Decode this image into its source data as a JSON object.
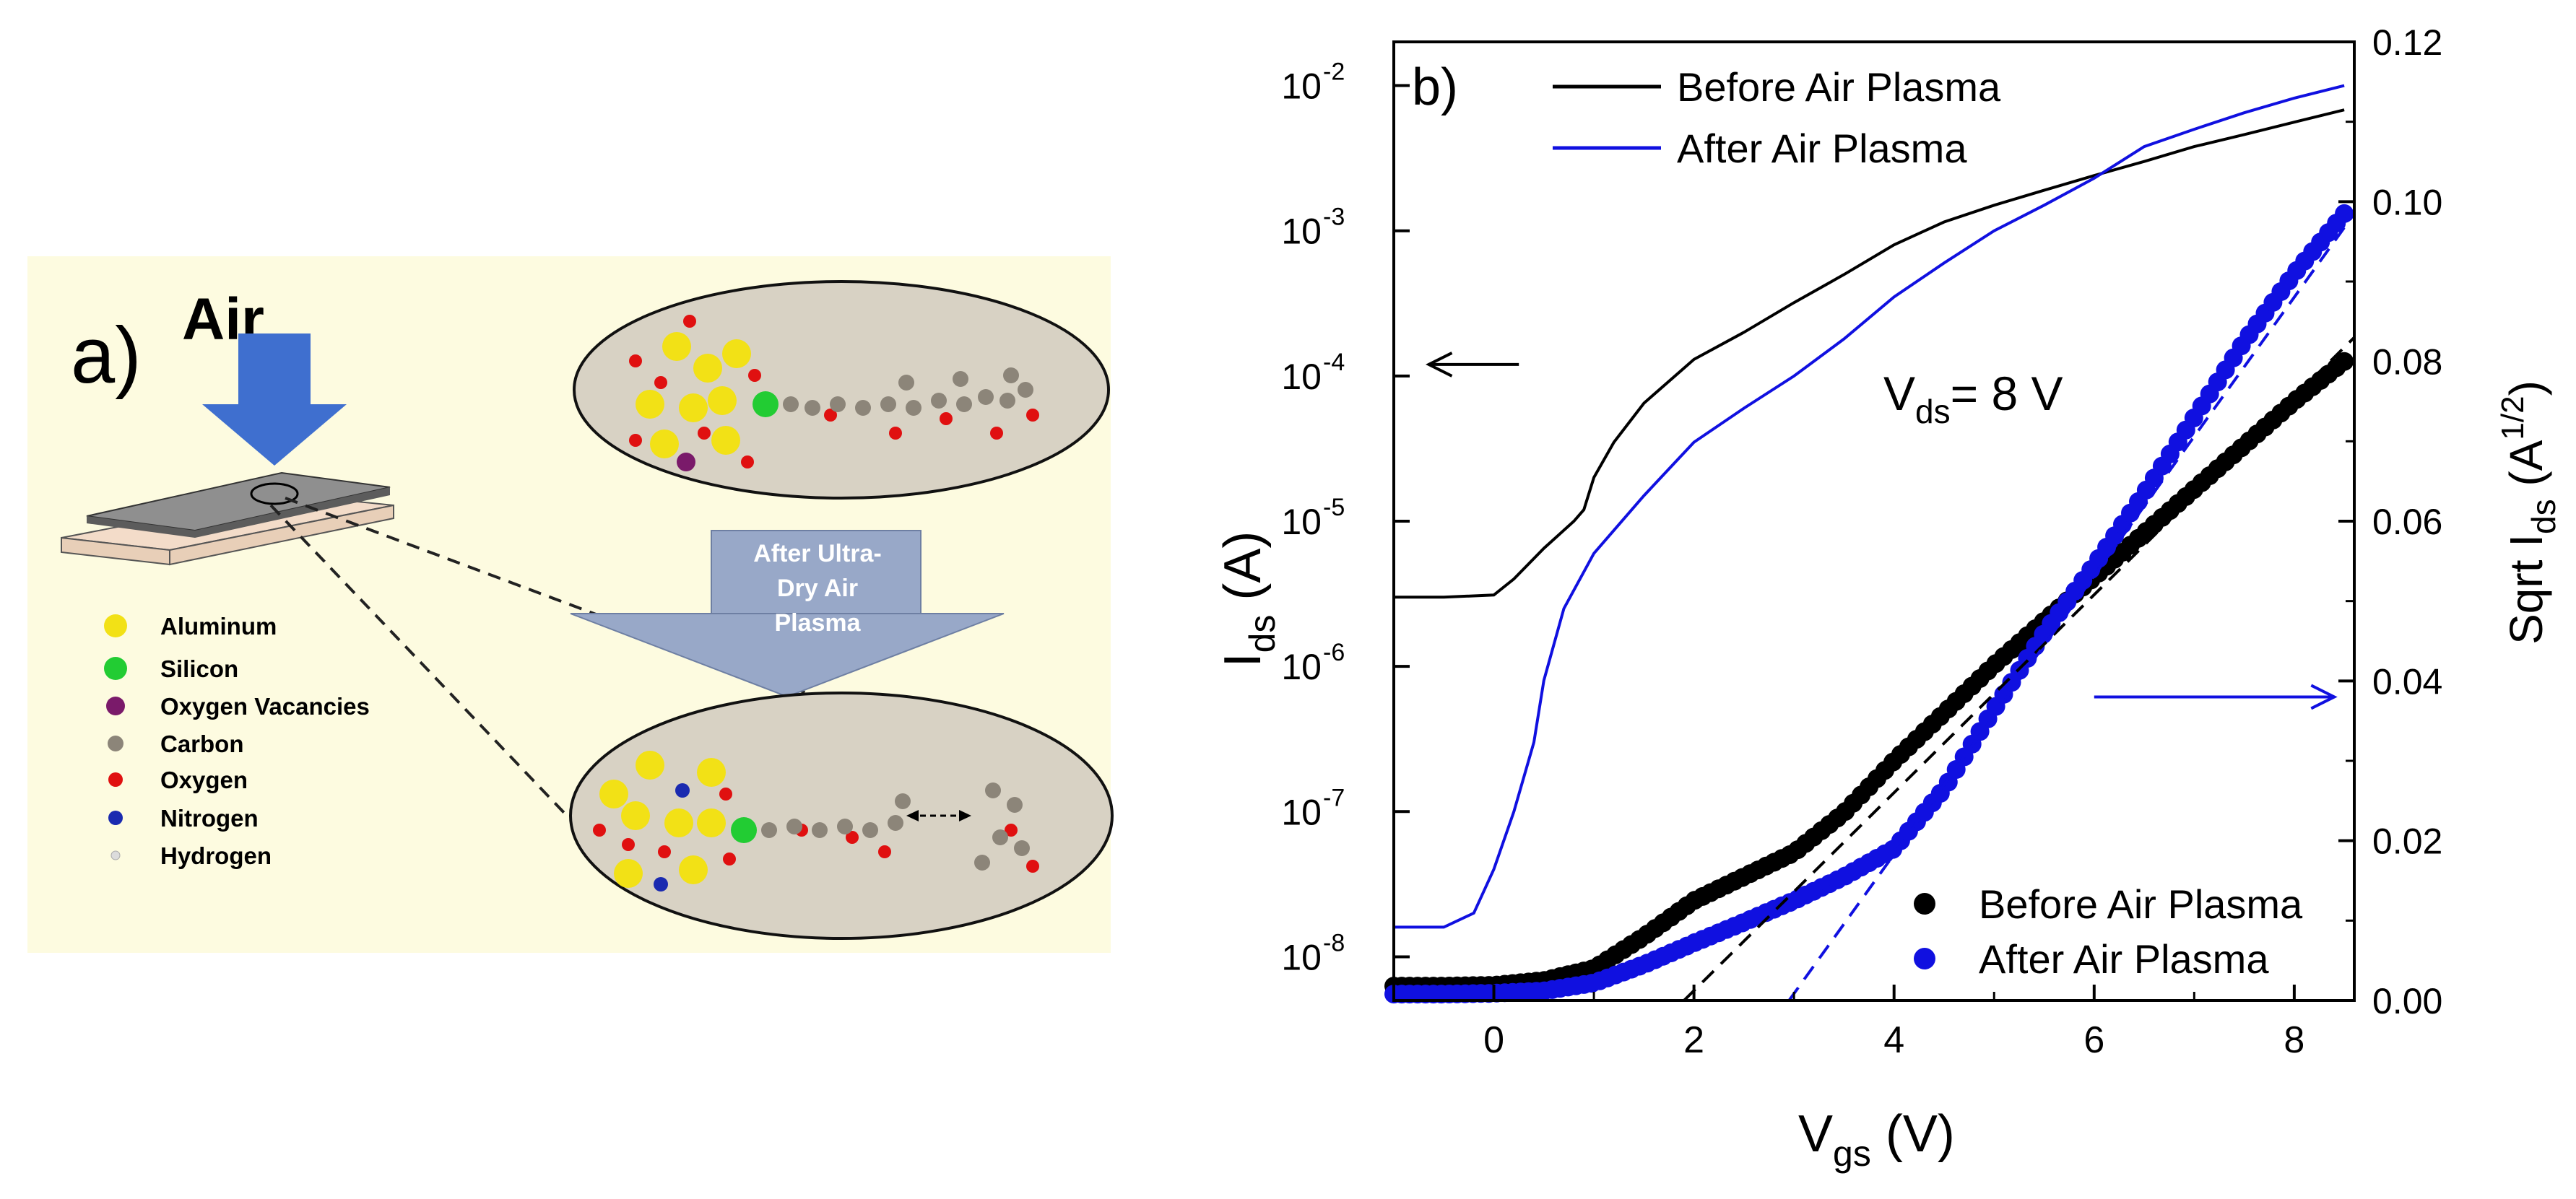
{
  "panel_a": {
    "panel_label": "a)",
    "air_label": "Air",
    "arrow_text": [
      "After Ultra-",
      "Dry Air",
      "Plasma"
    ],
    "legend": [
      {
        "label": "Aluminum",
        "color": "#f2e116"
      },
      {
        "label": "Silicon",
        "color": "#22cc33"
      },
      {
        "label": "Oxygen Vacancies",
        "color": "#7a1a6a"
      },
      {
        "label": "Carbon",
        "color": "#8c8579"
      },
      {
        "label": "Oxygen",
        "color": "#e01010"
      },
      {
        "label": "Nitrogen",
        "color": "#1a2ab0"
      },
      {
        "label": "Hydrogen",
        "color": "#dcdcdc"
      }
    ],
    "background_color": "#fdfbe0"
  },
  "chart_data": {
    "type": "line",
    "panel_label": "b)",
    "xlabel": "V",
    "xlabel_sub": "gs",
    "xlabel_unit": " (V)",
    "ylabel_left": "I",
    "ylabel_left_sub": "ds",
    "ylabel_left_unit": " (A)",
    "ylabel_right_prefix": "Sqrt I",
    "ylabel_right_sub": "ds",
    "ylabel_right_unit_open": " (A",
    "ylabel_right_sup": "1/2",
    "ylabel_right_unit_close": ")",
    "xlim": [
      -1,
      8.6
    ],
    "ylim_left": [
      5e-09,
      0.02
    ],
    "yscale_left": "log",
    "ylim_right": [
      0,
      0.12
    ],
    "x_ticks": [
      "0",
      "2",
      "4",
      "6",
      "8"
    ],
    "x_tick_values": [
      0,
      2,
      4,
      6,
      8
    ],
    "y_left_ticks": [
      {
        "base": "10",
        "exp": "-8",
        "value": 1e-08
      },
      {
        "base": "10",
        "exp": "-7",
        "value": 1e-07
      },
      {
        "base": "10",
        "exp": "-6",
        "value": 1e-06
      },
      {
        "base": "10",
        "exp": "-5",
        "value": 1e-05
      },
      {
        "base": "10",
        "exp": "-4",
        "value": 0.0001
      },
      {
        "base": "10",
        "exp": "-3",
        "value": 0.001
      },
      {
        "base": "10",
        "exp": "-2",
        "value": 0.01
      }
    ],
    "y_right_ticks": [
      "0.00",
      "0.02",
      "0.04",
      "0.06",
      "0.08",
      "0.10",
      "0.12"
    ],
    "y_right_tick_values": [
      0,
      0.02,
      0.04,
      0.06,
      0.08,
      0.1,
      0.12
    ],
    "annotation": {
      "prefix": "V",
      "sub": "ds",
      "text": "= 8 V"
    },
    "line_legend": [
      "Before Air Plasma",
      "After Air Plasma"
    ],
    "marker_legend": [
      "Before Air Plasma",
      "After Air Plasma"
    ],
    "colors": {
      "before": "#000000",
      "after": "#1010e0"
    },
    "series": [
      {
        "name": "Before Air Plasma",
        "kind": "line",
        "axis": "left",
        "color": "#000000",
        "x": [
          -1.0,
          -0.5,
          0.0,
          0.2,
          0.5,
          0.8,
          0.9,
          1.0,
          1.2,
          1.5,
          2.0,
          2.5,
          3.0,
          3.5,
          4.0,
          4.5,
          5.0,
          5.5,
          6.0,
          6.5,
          7.0,
          7.5,
          8.0,
          8.5
        ],
        "y": [
          3e-06,
          3e-06,
          3.1e-06,
          4e-06,
          6.5e-06,
          1e-05,
          1.2e-05,
          2e-05,
          3.5e-05,
          6.5e-05,
          0.00013,
          0.0002,
          0.00032,
          0.0005,
          0.0008,
          0.00115,
          0.0015,
          0.0019,
          0.0024,
          0.003,
          0.0038,
          0.0046,
          0.0056,
          0.0068
        ]
      },
      {
        "name": "After Air Plasma",
        "kind": "line",
        "axis": "left",
        "color": "#1010e0",
        "x": [
          -1.0,
          -0.5,
          -0.2,
          0.0,
          0.2,
          0.4,
          0.5,
          0.7,
          1.0,
          1.5,
          2.0,
          2.5,
          3.0,
          3.5,
          4.0,
          4.5,
          5.0,
          5.5,
          6.0,
          6.5,
          7.0,
          7.5,
          8.0,
          8.5
        ],
        "y": [
          1.6e-08,
          1.6e-08,
          2e-08,
          4e-08,
          1e-07,
          3e-07,
          8e-07,
          2.5e-06,
          6e-06,
          1.5e-05,
          3.5e-05,
          6e-05,
          0.0001,
          0.00018,
          0.00035,
          0.0006,
          0.001,
          0.0015,
          0.0023,
          0.0038,
          0.005,
          0.0065,
          0.0082,
          0.01
        ]
      },
      {
        "name": "Before Air Plasma",
        "kind": "scatter",
        "axis": "right",
        "color": "#000000",
        "x": [
          -1.0,
          -0.5,
          0.0,
          0.5,
          1.0,
          1.5,
          2.0,
          2.5,
          3.0,
          3.5,
          4.0,
          4.5,
          5.0,
          5.5,
          6.0,
          6.5,
          7.0,
          7.5,
          8.0,
          8.5
        ],
        "y": [
          0.0018,
          0.0018,
          0.0019,
          0.0025,
          0.004,
          0.008,
          0.0125,
          0.0155,
          0.0185,
          0.0235,
          0.03,
          0.036,
          0.042,
          0.0475,
          0.053,
          0.0585,
          0.064,
          0.0695,
          0.075,
          0.08
        ]
      },
      {
        "name": "After Air Plasma",
        "kind": "scatter",
        "axis": "right",
        "color": "#1010e0",
        "x": [
          -1.0,
          -0.5,
          0.0,
          0.5,
          1.0,
          1.5,
          2.0,
          2.5,
          3.0,
          3.5,
          4.0,
          4.5,
          5.0,
          5.5,
          6.0,
          6.5,
          7.0,
          7.5,
          8.0,
          8.5
        ],
        "y": [
          0.0008,
          0.0008,
          0.0009,
          0.0012,
          0.0022,
          0.0045,
          0.0072,
          0.0098,
          0.0125,
          0.0155,
          0.019,
          0.0265,
          0.0365,
          0.046,
          0.0545,
          0.0635,
          0.073,
          0.0825,
          0.091,
          0.0985
        ]
      },
      {
        "name": "",
        "kind": "fit",
        "axis": "right",
        "color": "#000000",
        "x": [
          1.9,
          8.6
        ],
        "y": [
          0.0,
          0.083
        ]
      },
      {
        "name": "",
        "kind": "fit",
        "axis": "right",
        "color": "#1010e0",
        "x": [
          2.95,
          8.6
        ],
        "y": [
          0.0,
          0.0985
        ]
      }
    ],
    "arrows": [
      {
        "direction": "left",
        "axis": "left",
        "color": "#000000"
      },
      {
        "direction": "right",
        "axis": "right",
        "color": "#1010e0"
      }
    ]
  }
}
